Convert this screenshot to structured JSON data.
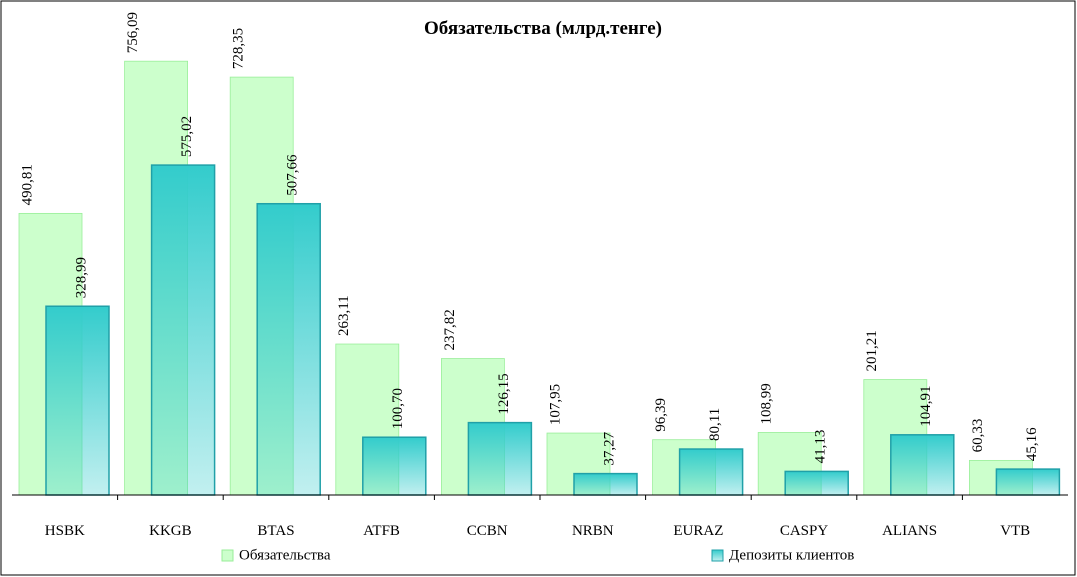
{
  "chart_data": {
    "type": "bar",
    "title": "Обязательства (млрд.тенге)",
    "categories": [
      "HSBK",
      "KKGB",
      "BTAS",
      "ATFB",
      "CCBN",
      "NRBN",
      "EURAZ",
      "CASPY",
      "ALIANS",
      "VTB"
    ],
    "series": [
      {
        "name": "Обязательства",
        "color": "#ccffcc",
        "values": [
          490.81,
          756.09,
          728.35,
          263.11,
          237.82,
          107.95,
          96.39,
          108.99,
          201.21,
          60.33
        ],
        "value_labels": [
          "490,81",
          "756,09",
          "728,35",
          "263,11",
          "237,82",
          "107,95",
          "96,39",
          "108,99",
          "201,21",
          "60,33"
        ]
      },
      {
        "name": "Депозиты клиентов",
        "color": "#33cccc",
        "values": [
          328.99,
          575.02,
          507.66,
          100.7,
          126.15,
          37.27,
          80.11,
          41.13,
          104.91,
          45.16
        ],
        "value_labels": [
          "328,99",
          "575,02",
          "507,66",
          "100,70",
          "126,15",
          "37,27",
          "80,11",
          "41,13",
          "104,91",
          "45,16"
        ]
      }
    ],
    "ylim": [
      0,
      800
    ]
  }
}
